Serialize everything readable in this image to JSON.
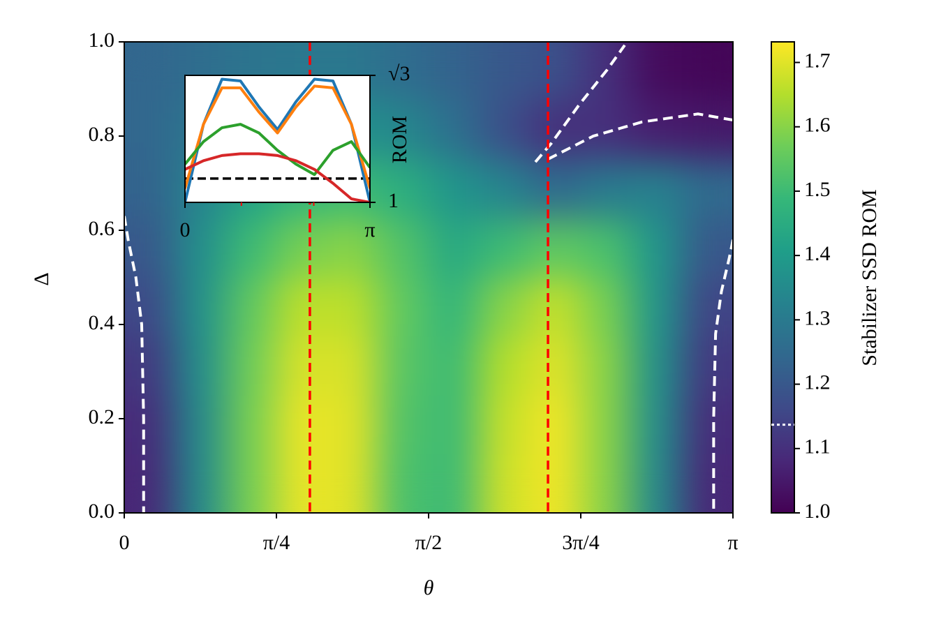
{
  "chart_data": {
    "type": "heatmap",
    "x_label": "θ",
    "y_label": "Δ",
    "colorbar_label": "Stabilizer SSD ROM",
    "xlim": [
      0,
      3.1416
    ],
    "ylim": [
      0,
      1
    ],
    "zlim": [
      1,
      1.732
    ],
    "xticks": [
      {
        "value": 0,
        "label": "0"
      },
      {
        "value": 0.7854,
        "label": "π/4"
      },
      {
        "value": 1.5708,
        "label": "π/2"
      },
      {
        "value": 2.3562,
        "label": "3π/4"
      },
      {
        "value": 3.1416,
        "label": "π"
      }
    ],
    "yticks": [
      {
        "value": 0,
        "label": "0.0"
      },
      0.2,
      0.4,
      0.6,
      0.8,
      {
        "value": 1,
        "label": "1.0"
      }
    ],
    "zticks": [
      {
        "value": 1,
        "label": "1.0"
      },
      1.1,
      1.2,
      1.3,
      1.4,
      1.5,
      1.6,
      1.7
    ],
    "colormap": "viridis",
    "x": [
      0.131,
      0.393,
      0.654,
      0.916,
      1.178,
      1.44,
      1.702,
      1.963,
      2.225,
      2.487,
      2.749,
      3.011
    ],
    "y": [
      0.0625,
      0.1875,
      0.3125,
      0.4375,
      0.5625,
      0.6875,
      0.8125,
      0.9375
    ],
    "z": [
      [
        1.08,
        1.35,
        1.58,
        1.71,
        1.7,
        1.52,
        1.5,
        1.68,
        1.72,
        1.6,
        1.35,
        1.08
      ],
      [
        1.09,
        1.35,
        1.58,
        1.71,
        1.7,
        1.53,
        1.5,
        1.67,
        1.72,
        1.6,
        1.36,
        1.09
      ],
      [
        1.12,
        1.36,
        1.57,
        1.69,
        1.69,
        1.54,
        1.5,
        1.65,
        1.7,
        1.6,
        1.37,
        1.12
      ],
      [
        1.16,
        1.37,
        1.55,
        1.66,
        1.66,
        1.55,
        1.48,
        1.6,
        1.67,
        1.58,
        1.38,
        1.15
      ],
      [
        1.2,
        1.36,
        1.5,
        1.58,
        1.6,
        1.53,
        1.44,
        1.5,
        1.55,
        1.52,
        1.38,
        1.2
      ],
      [
        1.23,
        1.33,
        1.42,
        1.48,
        1.5,
        1.46,
        1.38,
        1.33,
        1.25,
        1.3,
        1.32,
        1.25
      ],
      [
        1.24,
        1.29,
        1.34,
        1.37,
        1.37,
        1.34,
        1.27,
        1.18,
        1.1,
        1.1,
        1.06,
        1.05
      ],
      [
        1.24,
        1.26,
        1.28,
        1.29,
        1.29,
        1.26,
        1.23,
        1.2,
        1.18,
        1.1,
        1.02,
        1.01
      ]
    ],
    "vlines": {
      "color": "#ff0000",
      "x": [
        0.958,
        2.187
      ]
    },
    "threshold": 1.137,
    "contours": {
      "color": "#ffffff",
      "lines": [
        {
          "x": [
            0.0,
            0.02,
            0.06,
            0.09,
            0.1,
            0.1
          ],
          "y": [
            0.63,
            0.58,
            0.5,
            0.4,
            0.2,
            0.0
          ]
        },
        {
          "x": [
            3.142,
            3.122,
            3.082,
            3.052,
            3.042,
            3.042
          ],
          "y": [
            0.58,
            0.54,
            0.47,
            0.38,
            0.2,
            0.0
          ]
        },
        {
          "x": [
            2.122,
            2.205,
            2.349,
            2.493,
            2.583
          ],
          "y": [
            0.745,
            0.785,
            0.867,
            0.941,
            0.993
          ]
        },
        {
          "x": [
            2.187,
            2.421,
            2.673,
            2.961,
            3.142
          ],
          "y": [
            0.751,
            0.8,
            0.83,
            0.847,
            0.834
          ]
        }
      ]
    },
    "inset": {
      "type": "line",
      "y_label": "ROM",
      "xlim": [
        0,
        3.1416
      ],
      "ylim": [
        1,
        1.732
      ],
      "xticks": [
        {
          "value": 0,
          "label": "0"
        },
        {
          "value": 3.1416,
          "label": "π"
        }
      ],
      "yticks": [
        1,
        {
          "value": 1.732,
          "label": "√3"
        }
      ],
      "x": [
        0,
        0.314,
        0.628,
        0.942,
        1.257,
        1.571,
        1.885,
        2.199,
        2.513,
        2.827,
        3.142
      ],
      "series": [
        {
          "color": "#1f77b4",
          "values": [
            1.0,
            1.45,
            1.71,
            1.7,
            1.55,
            1.42,
            1.58,
            1.71,
            1.7,
            1.45,
            1.0
          ]
        },
        {
          "color": "#ff7f0e",
          "values": [
            1.08,
            1.45,
            1.66,
            1.66,
            1.52,
            1.4,
            1.55,
            1.67,
            1.66,
            1.45,
            1.08
          ]
        },
        {
          "color": "#2ca02c",
          "values": [
            1.22,
            1.35,
            1.43,
            1.45,
            1.4,
            1.3,
            1.22,
            1.16,
            1.3,
            1.35,
            1.2
          ]
        },
        {
          "color": "#d62728",
          "values": [
            1.19,
            1.24,
            1.27,
            1.28,
            1.28,
            1.27,
            1.24,
            1.19,
            1.11,
            1.02,
            1.0
          ]
        }
      ]
    }
  }
}
